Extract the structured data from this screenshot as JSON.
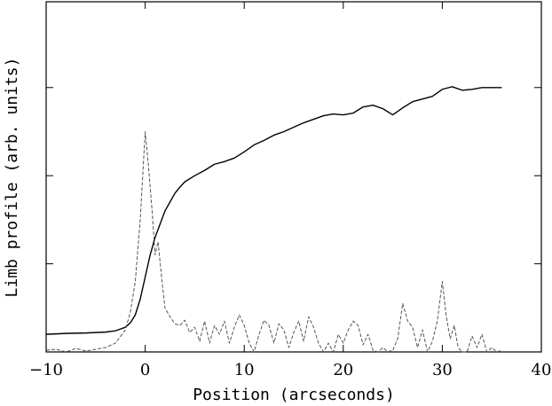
{
  "chart_data": {
    "type": "line",
    "title": "",
    "xlabel": "Position (arcseconds)",
    "ylabel": "Limb profile   (arb. units)",
    "xlim": [
      -10,
      40
    ],
    "ylim": [
      0,
      3.0
    ],
    "x_ticks": [
      -10,
      0,
      10,
      20,
      30,
      40
    ],
    "x_tick_labels": [
      "−10",
      "0",
      "10",
      "20",
      "30",
      "40"
    ],
    "y_ticks_unlabeled": [
      1,
      2,
      3
    ],
    "grid": false,
    "legend": "none",
    "series": [
      {
        "style": "solid",
        "color": "#000000",
        "points": [
          [
            -10,
            0.2
          ],
          [
            -8,
            0.21
          ],
          [
            -6,
            0.215
          ],
          [
            -4,
            0.225
          ],
          [
            -3,
            0.24
          ],
          [
            -2,
            0.28
          ],
          [
            -1.5,
            0.33
          ],
          [
            -1,
            0.42
          ],
          [
            -0.5,
            0.6
          ],
          [
            0,
            0.85
          ],
          [
            0.5,
            1.1
          ],
          [
            1,
            1.3
          ],
          [
            1.5,
            1.45
          ],
          [
            2,
            1.6
          ],
          [
            2.5,
            1.7
          ],
          [
            3,
            1.8
          ],
          [
            3.5,
            1.87
          ],
          [
            4,
            1.93
          ],
          [
            5,
            2.0
          ],
          [
            6,
            2.06
          ],
          [
            7,
            2.13
          ],
          [
            8,
            2.16
          ],
          [
            9,
            2.2
          ],
          [
            10,
            2.27
          ],
          [
            11,
            2.35
          ],
          [
            12,
            2.4
          ],
          [
            13,
            2.46
          ],
          [
            14,
            2.5
          ],
          [
            15,
            2.55
          ],
          [
            16,
            2.6
          ],
          [
            17,
            2.64
          ],
          [
            18,
            2.68
          ],
          [
            19,
            2.7
          ],
          [
            20,
            2.69
          ],
          [
            21,
            2.71
          ],
          [
            22,
            2.78
          ],
          [
            23,
            2.8
          ],
          [
            24,
            2.76
          ],
          [
            25,
            2.69
          ],
          [
            26,
            2.77
          ],
          [
            27,
            2.84
          ],
          [
            28,
            2.87
          ],
          [
            29,
            2.9
          ],
          [
            30,
            2.98
          ],
          [
            31,
            3.01
          ],
          [
            32,
            2.97
          ],
          [
            33,
            2.98
          ],
          [
            34,
            3.0
          ],
          [
            35,
            3.0
          ],
          [
            36,
            3.0
          ]
        ]
      },
      {
        "style": "dashed",
        "color": "#555555",
        "points": [
          [
            -10,
            0.02
          ],
          [
            -9,
            0.03
          ],
          [
            -8,
            0.0
          ],
          [
            -7,
            0.04
          ],
          [
            -6,
            0.01
          ],
          [
            -5,
            0.03
          ],
          [
            -4,
            0.05
          ],
          [
            -3,
            0.1
          ],
          [
            -2,
            0.25
          ],
          [
            -1.5,
            0.45
          ],
          [
            -1,
            0.8
          ],
          [
            -0.5,
            1.5
          ],
          [
            0,
            2.5
          ],
          [
            0.3,
            2.15
          ],
          [
            0.7,
            1.6
          ],
          [
            1,
            1.1
          ],
          [
            1.3,
            1.25
          ],
          [
            1.7,
            0.8
          ],
          [
            2,
            0.5
          ],
          [
            2.5,
            0.4
          ],
          [
            3,
            0.32
          ],
          [
            3.5,
            0.3
          ],
          [
            4,
            0.36
          ],
          [
            4.5,
            0.22
          ],
          [
            5,
            0.28
          ],
          [
            5.5,
            0.12
          ],
          [
            6,
            0.35
          ],
          [
            6.5,
            0.1
          ],
          [
            7,
            0.3
          ],
          [
            7.5,
            0.2
          ],
          [
            8,
            0.35
          ],
          [
            8.5,
            0.1
          ],
          [
            9,
            0.28
          ],
          [
            9.5,
            0.42
          ],
          [
            10,
            0.3
          ],
          [
            10.5,
            0.1
          ],
          [
            11,
            0.0
          ],
          [
            11.5,
            0.2
          ],
          [
            12,
            0.36
          ],
          [
            12.5,
            0.3
          ],
          [
            13,
            0.1
          ],
          [
            13.5,
            0.32
          ],
          [
            14,
            0.25
          ],
          [
            14.5,
            0.05
          ],
          [
            15,
            0.22
          ],
          [
            15.5,
            0.35
          ],
          [
            16,
            0.12
          ],
          [
            16.5,
            0.4
          ],
          [
            17,
            0.28
          ],
          [
            17.5,
            0.1
          ],
          [
            18,
            0.0
          ],
          [
            18.5,
            0.1
          ],
          [
            19,
            0.0
          ],
          [
            19.5,
            0.2
          ],
          [
            20,
            0.1
          ],
          [
            20.5,
            0.25
          ],
          [
            21,
            0.35
          ],
          [
            21.5,
            0.3
          ],
          [
            22,
            0.08
          ],
          [
            22.5,
            0.2
          ],
          [
            23,
            0.02
          ],
          [
            23.5,
            0.0
          ],
          [
            24,
            0.05
          ],
          [
            24.5,
            0.0
          ],
          [
            25,
            0.02
          ],
          [
            25.5,
            0.15
          ],
          [
            26,
            0.55
          ],
          [
            26.5,
            0.35
          ],
          [
            27,
            0.28
          ],
          [
            27.5,
            0.05
          ],
          [
            28,
            0.25
          ],
          [
            28.5,
            0.0
          ],
          [
            29,
            0.12
          ],
          [
            29.5,
            0.35
          ],
          [
            30,
            0.8
          ],
          [
            30.4,
            0.4
          ],
          [
            30.8,
            0.15
          ],
          [
            31.2,
            0.3
          ],
          [
            31.6,
            0.05
          ],
          [
            32,
            0.0
          ],
          [
            32.5,
            0.0
          ],
          [
            33,
            0.18
          ],
          [
            33.5,
            0.05
          ],
          [
            34,
            0.2
          ],
          [
            34.5,
            0.0
          ],
          [
            35,
            0.05
          ],
          [
            35.5,
            0.0
          ],
          [
            36,
            0.02
          ]
        ]
      }
    ]
  }
}
